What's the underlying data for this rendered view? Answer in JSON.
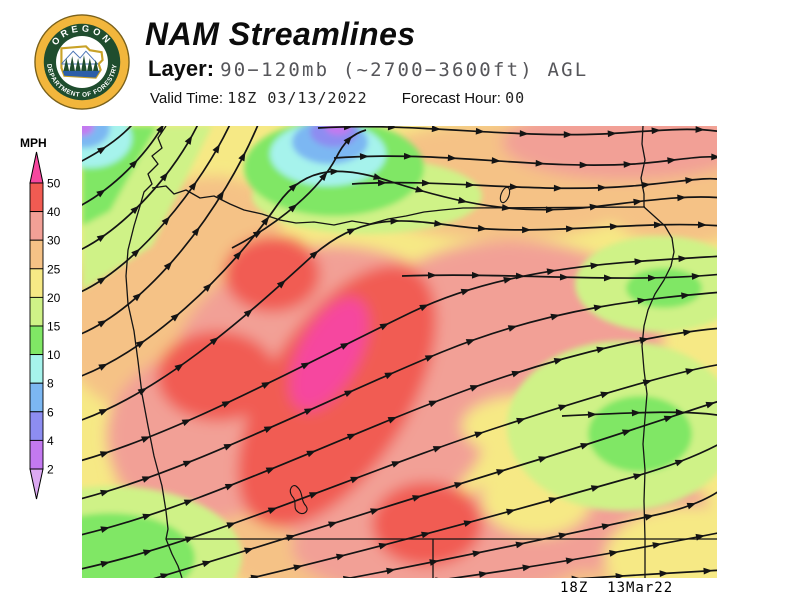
{
  "header": {
    "title": "NAM Streamlines",
    "layer_label": "Layer: ",
    "layer_value": "90−120mb (~2700−3600ft) AGL",
    "valid_time_label": "Valid Time: ",
    "valid_time_value": "18Z 03/13/2022",
    "forecast_hour_label": "Forecast Hour: ",
    "forecast_hour_value": "00"
  },
  "logo": {
    "top_text": "OREGON",
    "bottom_text": "DEPARTMENT OF FORESTRY",
    "ring_color": "#F2B63C",
    "band_color": "#1F4D2E"
  },
  "legend": {
    "units_label": "MPH",
    "tick_labels": [
      "50",
      "40",
      "30",
      "25",
      "20",
      "15",
      "10",
      "8",
      "6",
      "4",
      "2"
    ],
    "segment_colors": [
      "#F15B52",
      "#F2A096",
      "#F5C286",
      "#F6E985",
      "#CFF287",
      "#80E765",
      "#A6F3EC",
      "#7CB7F2",
      "#8D8DF1",
      "#C379F0"
    ],
    "above_max_color": "#F6479F",
    "below_min_color": "#DCA9F2"
  },
  "map": {
    "timestamp": "18Z  13Mar22",
    "palette": {
      "yellow": "#F6E985",
      "lightgreen": "#CFF287",
      "green": "#80E765",
      "cyan": "#A6F3EC",
      "blue": "#7CB7F2",
      "violet": "#8D8DF1",
      "purple": "#C379F0",
      "peach": "#F5C286",
      "salmon": "#F2A096",
      "red": "#F15B52",
      "magenta": "#F6479F",
      "line": "#141414"
    }
  }
}
